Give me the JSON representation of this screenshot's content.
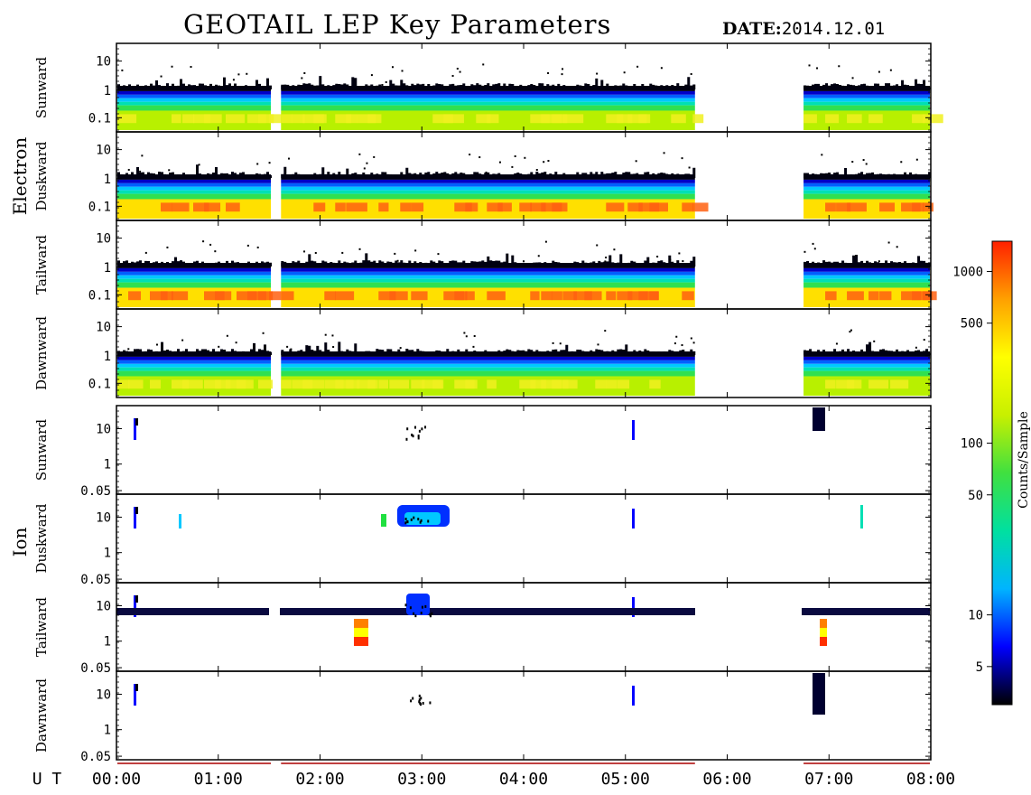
{
  "header": {
    "title": "GEOTAIL LEP Key Parameters",
    "date_label": "DATE:",
    "date_value": "2014.12.01"
  },
  "chart_data": {
    "type": "heatmap",
    "title": "GEOTAIL LEP Key Parameters",
    "date": "2014.12.01",
    "x_axis": {
      "label": "U T",
      "range": [
        "00:00",
        "08:00"
      ],
      "ticks": [
        "00:00",
        "01:00",
        "02:00",
        "03:00",
        "04:00",
        "05:00",
        "06:00",
        "07:00",
        "08:00"
      ]
    },
    "colorbar": {
      "label": "Counts/Sample",
      "scale": "log",
      "range": [
        3,
        1500
      ],
      "ticks": [
        "5",
        "10",
        "50",
        "100",
        "500",
        "1000"
      ],
      "colormap": [
        "#000000",
        "#0000ff",
        "#00b4ff",
        "#00e0a0",
        "#40e040",
        "#c8f000",
        "#ffff00",
        "#ffa000",
        "#ff2000"
      ]
    },
    "electron": {
      "group_label": "Electron",
      "yticks": [
        "10",
        "1",
        "0.1"
      ],
      "data_gaps_ut": [
        [
          "01:31",
          "01:37"
        ],
        [
          "05:41",
          "06:45"
        ]
      ],
      "panels": [
        {
          "label": "Sunward",
          "peak_level": "yellow"
        },
        {
          "label": "Duskward",
          "peak_level": "red"
        },
        {
          "label": "Tailward",
          "peak_level": "red"
        },
        {
          "label": "Dawnward",
          "peak_level": "yellow"
        }
      ]
    },
    "ion": {
      "group_label": "Ion",
      "yticks": [
        "10",
        "1",
        "0.05"
      ],
      "panels": [
        {
          "label": "Sunward"
        },
        {
          "label": "Duskward"
        },
        {
          "label": "Tailward"
        },
        {
          "label": "Dawnward"
        }
      ]
    }
  }
}
